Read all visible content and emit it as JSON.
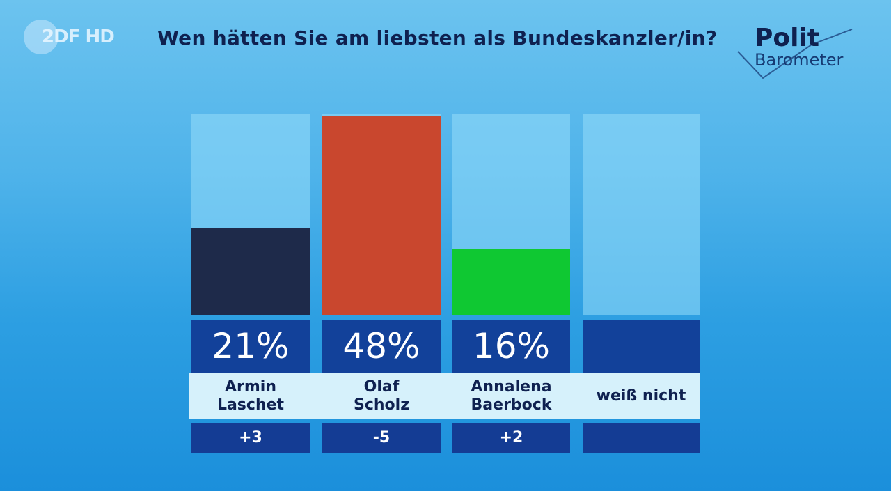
{
  "broadcaster_logo": "2DF HD",
  "brand": {
    "line1": "Polit",
    "line2": "Barometer",
    "icon": "checkmark-icon"
  },
  "chart_data": {
    "type": "bar",
    "title": "Wen hätten Sie am liebsten als Bundeskanzler/in?",
    "categories": [
      "Armin\nLaschet",
      "Olaf\nScholz",
      "Annalena\nBaerbock",
      "weiß nicht"
    ],
    "values": [
      21,
      48,
      16,
      null
    ],
    "value_labels": [
      "21%",
      "48%",
      "16%",
      ""
    ],
    "changes": [
      "+3",
      "-5",
      "+2",
      ""
    ],
    "colors": [
      "#1e2a4a",
      "#c9472e",
      "#0fc832",
      "#6cc6f0"
    ],
    "xlabel": "",
    "ylabel": "",
    "ylim": [
      0,
      48
    ],
    "grid": false,
    "legend": "none"
  }
}
